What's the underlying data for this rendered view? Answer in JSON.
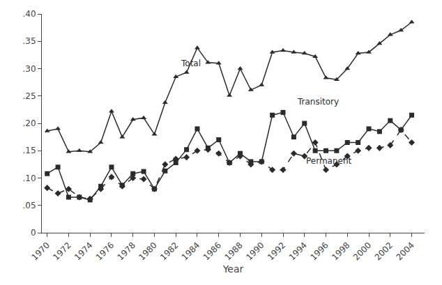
{
  "chart_data": {
    "type": "line",
    "x": [
      1970,
      1971,
      1972,
      1973,
      1974,
      1975,
      1976,
      1977,
      1978,
      1979,
      1980,
      1981,
      1982,
      1983,
      1984,
      1985,
      1986,
      1987,
      1988,
      1989,
      1990,
      1991,
      1992,
      1993,
      1994,
      1995,
      1996,
      1997,
      1998,
      1999,
      2000,
      2001,
      2002,
      2003,
      2004
    ],
    "series": [
      {
        "color": "#2b2b2b",
        "marker": "triangle-up",
        "line_style": "solid",
        "values": [
          0.186,
          0.19,
          0.148,
          0.15,
          0.148,
          0.165,
          0.222,
          0.175,
          0.207,
          0.21,
          0.18,
          0.238,
          0.285,
          0.293,
          0.338,
          0.311,
          0.31,
          0.251,
          0.3,
          0.261,
          0.27,
          0.33,
          0.333,
          0.33,
          0.328,
          0.322,
          0.283,
          0.28,
          0.3,
          0.328,
          0.33,
          0.346,
          0.362,
          0.37,
          0.385
        ]
      },
      {
        "color": "#2b2b2b",
        "marker": "square",
        "line_style": "solid",
        "values": [
          0.108,
          0.12,
          0.065,
          0.065,
          0.06,
          0.085,
          0.12,
          0.087,
          0.108,
          0.112,
          0.08,
          0.113,
          0.128,
          0.152,
          0.19,
          0.155,
          0.17,
          0.128,
          0.145,
          0.13,
          0.13,
          0.215,
          0.22,
          0.175,
          0.2,
          0.15,
          0.15,
          0.15,
          0.165,
          0.165,
          0.19,
          0.185,
          0.205,
          0.188,
          0.215
        ]
      },
      {
        "color": "#2b2b2b",
        "marker": "diamond",
        "line_style": "dashed",
        "values": [
          0.082,
          0.072,
          0.08,
          0.065,
          0.062,
          0.08,
          0.102,
          0.085,
          0.1,
          0.098,
          0.08,
          0.125,
          0.135,
          0.138,
          0.15,
          0.152,
          0.145,
          0.128,
          0.14,
          0.125,
          0.13,
          0.115,
          0.115,
          0.145,
          0.14,
          0.165,
          0.115,
          0.125,
          0.14,
          0.15,
          0.155,
          0.155,
          0.16,
          0.188,
          0.165
        ]
      }
    ],
    "annotations": [
      {
        "text": "Total",
        "x": 1982.3,
        "y": 0.298,
        "color": "#2b2b2b"
      },
      {
        "text": "Transitory",
        "x": 1993.2,
        "y": 0.228,
        "color": "#2b2b2b"
      },
      {
        "text": "Permanent",
        "x": 1994.0,
        "y": 0.12,
        "color": "#2b2b2b"
      }
    ],
    "xlabel": "Year",
    "xlim": [
      1969.5,
      2005.2
    ],
    "xticks": [
      1970,
      1972,
      1974,
      1976,
      1978,
      1980,
      1982,
      1984,
      1986,
      1988,
      1990,
      1992,
      1994,
      1996,
      1998,
      2000,
      2002,
      2004
    ],
    "ylim": [
      0,
      0.4
    ],
    "yticks": [
      0,
      {
        "value": 0.05,
        "label": ".05"
      },
      {
        "value": 0.1,
        "label": ".10"
      },
      {
        "value": 0.15,
        "label": ".15"
      },
      {
        "value": 0.2,
        "label": ".20"
      },
      {
        "value": 0.25,
        "label": ".25"
      },
      {
        "value": 0.3,
        "label": ".30"
      },
      {
        "value": 0.35,
        "label": ".35"
      },
      {
        "value": 0.4,
        "label": ".40"
      }
    ],
    "grid": false
  }
}
